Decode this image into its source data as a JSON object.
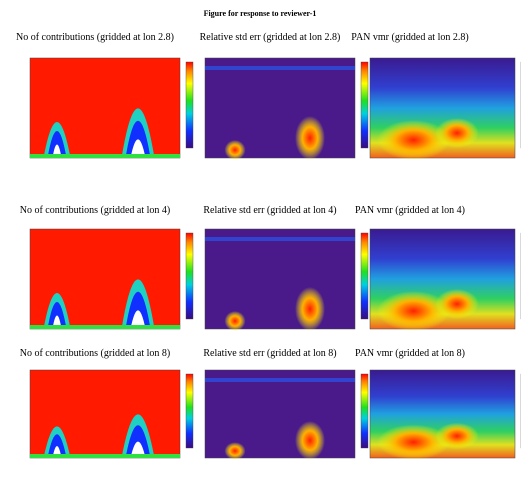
{
  "header": {
    "title": "Figure for response to reviewer-1"
  },
  "rows": [
    {
      "panels": [
        {
          "title": "No of contributions (gridded at lon 2.8)"
        },
        {
          "title": "Relative std err (gridded at lon 2.8)"
        },
        {
          "title": "PAN vmr  (gridded at lon 2.8)"
        }
      ]
    },
    {
      "panels": [
        {
          "title": "No of contributions (gridded at lon 4)"
        },
        {
          "title": "Relative std err (gridded at lon 4)"
        },
        {
          "title": "PAN vmr  (gridded at lon 4)"
        }
      ]
    },
    {
      "panels": [
        {
          "title": "No of contributions (gridded at lon 8)"
        },
        {
          "title": "Relative std err (gridded at lon 8)"
        },
        {
          "title": "PAN vmr  (gridded at lon 8)"
        }
      ]
    }
  ]
}
